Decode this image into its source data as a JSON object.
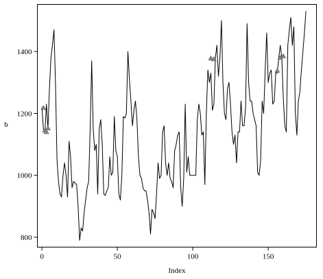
{
  "chart_data": {
    "type": "line",
    "title": "",
    "xlabel": "Index",
    "ylabel": "b",
    "xlim": [
      -3,
      182
    ],
    "ylim": [
      768,
      1552
    ],
    "xticks": [
      0,
      50,
      100,
      150
    ],
    "yticks": [
      800,
      1000,
      1200,
      1400
    ],
    "grid": false,
    "legend": "none",
    "line_color": "#000000",
    "marker_color": "#8a8a8a",
    "series": [
      {
        "values": [
          1220,
          1150,
          1140,
          1230,
          1150,
          1280,
          1380,
          1420,
          1470,
          1300,
          1050,
          980,
          940,
          930,
          1000,
          1040,
          1000,
          930,
          1110,
          1060,
          960,
          980,
          975,
          970,
          900,
          790,
          830,
          820,
          880,
          920,
          960,
          980,
          1150,
          1370,
          1150,
          1080,
          1100,
          940,
          1150,
          1180,
          1100,
          940,
          935,
          950,
          960,
          1060,
          1000,
          1010,
          1190,
          1080,
          1060,
          940,
          920,
          1000,
          1190,
          1185,
          1200,
          1400,
          1310,
          1240,
          1160,
          1210,
          1240,
          1180,
          1060,
          1000,
          990,
          960,
          950,
          950,
          920,
          880,
          810,
          890,
          880,
          860,
          940,
          1040,
          990,
          1000,
          1140,
          1160,
          1040,
          1000,
          1040,
          990,
          980,
          960,
          1080,
          1100,
          1130,
          1140,
          960,
          900,
          990,
          1230,
          1010,
          1060,
          1000,
          1000,
          1000,
          1000,
          1000,
          1180,
          1230,
          1200,
          1130,
          1140,
          970,
          1200,
          1340,
          1300,
          1330,
          1210,
          1230,
          1380,
          1420,
          1320,
          1380,
          1500,
          1300,
          1200,
          1180,
          1280,
          1300,
          1230,
          1140,
          1100,
          1130,
          1040,
          1140,
          1140,
          1240,
          1160,
          1160,
          1220,
          1490,
          1300,
          1240,
          1240,
          1200,
          1180,
          1160,
          1010,
          1000,
          1050,
          1240,
          1200,
          1340,
          1460,
          1300,
          1330,
          1340,
          1230,
          1240,
          1330,
          1330,
          1380,
          1420,
          1380,
          1250,
          1160,
          1140,
          1420,
          1470,
          1510,
          1420,
          1480,
          1200,
          1130,
          1240,
          1270,
          1340,
          1400,
          1460,
          1530
        ]
      }
    ],
    "marker_points": [
      {
        "x": 1,
        "y": 1218
      },
      {
        "x": 2,
        "y": 1145
      },
      {
        "x": 3,
        "y": 1140
      },
      {
        "x": 4,
        "y": 1152
      },
      {
        "x": 112,
        "y": 1378
      },
      {
        "x": 114,
        "y": 1375
      },
      {
        "x": 156,
        "y": 1338
      },
      {
        "x": 158,
        "y": 1380
      },
      {
        "x": 160,
        "y": 1385
      }
    ]
  }
}
